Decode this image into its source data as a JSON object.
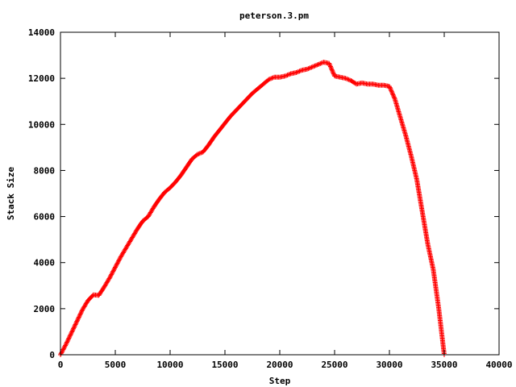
{
  "chart_data": {
    "type": "scatter",
    "title": "peterson.3.pm",
    "xlabel": "Step",
    "ylabel": "Stack Size",
    "xlim": [
      0,
      40000
    ],
    "ylim": [
      0,
      14000
    ],
    "xticks": [
      "0",
      "5000",
      "10000",
      "15000",
      "20000",
      "25000",
      "30000",
      "35000",
      "40000"
    ],
    "yticks": [
      "0",
      "2000",
      "4000",
      "6000",
      "8000",
      "10000",
      "12000",
      "14000"
    ],
    "grid": false,
    "legend": "none",
    "marker": "+",
    "color": "#ff0000",
    "series": [
      {
        "x": [
          0,
          500,
          1000,
          1500,
          2000,
          2500,
          3000,
          3500,
          4000,
          4500,
          5000,
          5500,
          6000,
          6500,
          7000,
          7500,
          8000,
          8500,
          9000,
          9500,
          10000,
          10500,
          11000,
          11500,
          12000,
          12500,
          13000,
          13500,
          14000,
          14500,
          15000,
          15500,
          16000,
          16500,
          17000,
          17500,
          18000,
          18500,
          19000,
          19500,
          20000,
          20500,
          21000,
          21500,
          22000,
          22500,
          23000,
          23500,
          24000,
          24500,
          25000,
          25500,
          26000,
          26500,
          27000,
          27500,
          28000,
          28500,
          29000,
          29500,
          30000,
          30500,
          31000,
          31500,
          32000,
          32500,
          33000,
          33500,
          34000,
          34500,
          35000
        ],
        "y": [
          0,
          450,
          950,
          1450,
          1950,
          2350,
          2600,
          2580,
          2950,
          3350,
          3800,
          4250,
          4650,
          5050,
          5450,
          5800,
          6000,
          6400,
          6750,
          7050,
          7250,
          7500,
          7800,
          8150,
          8500,
          8700,
          8800,
          9100,
          9450,
          9750,
          10050,
          10350,
          10600,
          10850,
          11100,
          11350,
          11550,
          11750,
          11950,
          12050,
          12050,
          12100,
          12200,
          12250,
          12350,
          12400,
          12500,
          12600,
          12700,
          12650,
          12100,
          12050,
          12000,
          11900,
          11750,
          11800,
          11750,
          11750,
          11700,
          11700,
          11650,
          11100,
          10300,
          9500,
          8600,
          7600,
          6200,
          4800,
          3700,
          2000,
          0
        ]
      }
    ]
  }
}
